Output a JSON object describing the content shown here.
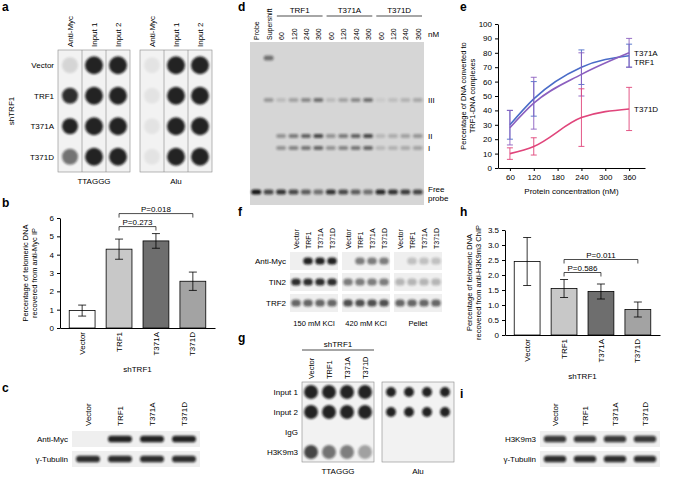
{
  "panel_labels": [
    "a",
    "b",
    "c",
    "d",
    "e",
    "f",
    "g",
    "h",
    "i"
  ],
  "chart_data": [
    {
      "type": "bar",
      "ylabel": "Percentage of telomeric DNA recovered from anti-Myc IP",
      "xlabel": "shTRF1",
      "categories": [
        "Vector",
        "TRF1",
        "T371A",
        "T371D"
      ],
      "values": [
        0.95,
        4.3,
        4.75,
        2.55
      ],
      "errors": [
        0.3,
        0.55,
        0.4,
        0.5
      ],
      "colors": [
        "#ffffff",
        "#c8c8c8",
        "#6e6e6e",
        "#a3a3a3"
      ],
      "ylim": [
        0,
        6
      ],
      "yticks": [
        0,
        1,
        2,
        3,
        4,
        5,
        6
      ],
      "annotations": [
        {
          "text": "P=0.273",
          "categories": [
            "TRF1",
            "T371A"
          ]
        },
        {
          "text": "P=0.018",
          "categories": [
            "TRF1",
            "T371D"
          ]
        }
      ]
    },
    {
      "type": "line",
      "ylabel": "Percentage of DNA converted to TRF1-DNA complexes",
      "xlabel": "Protein concentration (nM)",
      "x": [
        60,
        120,
        240,
        360
      ],
      "series": [
        {
          "name": "TRF1",
          "color": "#4a6cc8",
          "values": [
            30,
            48,
            70,
            78
          ],
          "errors": [
            10,
            12,
            12,
            8
          ]
        },
        {
          "name": "T371A",
          "color": "#8b5fbf",
          "values": [
            28,
            45,
            65,
            80
          ],
          "errors": [
            12,
            18,
            15,
            10
          ]
        },
        {
          "name": "T371D",
          "color": "#e0457b",
          "values": [
            10,
            15,
            35,
            41
          ],
          "errors": [
            4,
            6,
            20,
            15
          ]
        }
      ],
      "xlim": [
        30,
        400
      ],
      "xticks": [
        60,
        120,
        180,
        240,
        300,
        360
      ],
      "ylim": [
        0,
        100
      ],
      "yticks": [
        0,
        10,
        20,
        30,
        40,
        50,
        60,
        70,
        80,
        90,
        100
      ]
    },
    {
      "type": "bar",
      "ylabel": "Percentage of telomeric DNA recovered from anti-H3K9m3 ChIP",
      "xlabel": "shTRF1",
      "categories": [
        "Vector",
        "TRF1",
        "T371A",
        "T371D"
      ],
      "values": [
        2.45,
        1.55,
        1.45,
        0.85
      ],
      "errors": [
        0.8,
        0.3,
        0.25,
        0.25
      ],
      "colors": [
        "#ffffff",
        "#c8c8c8",
        "#6e6e6e",
        "#a3a3a3"
      ],
      "ylim": [
        0,
        3.5
      ],
      "yticks": [
        0,
        0.5,
        {
          "value": 1,
          "label": "1.0"
        },
        1.5,
        {
          "value": 2,
          "label": "2.0"
        },
        2.5,
        {
          "value": 3,
          "label": "3.0"
        },
        3.5
      ],
      "annotations": [
        {
          "text": "P=0.586",
          "categories": [
            "TRF1",
            "T371A"
          ]
        },
        {
          "text": "P=0.011",
          "categories": [
            "TRF1",
            "T371D"
          ]
        }
      ]
    }
  ],
  "panels": {
    "a": {
      "row_header": "shTRF1",
      "rows": [
        "Vector",
        "TRF1",
        "T371A",
        "T371D"
      ],
      "blots": [
        {
          "label": "TTAGGG",
          "columns": [
            "Anti-Myc",
            "Input 1",
            "Input 2"
          ]
        },
        {
          "label": "Alu",
          "columns": [
            "Anti-Myc",
            "Input 1",
            "Input 2"
          ]
        }
      ]
    },
    "c": {
      "lanes": [
        "Vector",
        "TRF1",
        "T371A",
        "T371D"
      ],
      "rows": [
        "Anti-Myc",
        "γ-Tubulin"
      ]
    },
    "d": {
      "lanes": [
        "Probe",
        "Supershift"
      ],
      "groups": [
        {
          "label": "TRF1",
          "lanes": [
            60,
            120,
            240,
            360
          ]
        },
        {
          "label": "T371A",
          "lanes": [
            60,
            120,
            240,
            360
          ]
        },
        {
          "label": "T371D",
          "lanes": [
            60,
            120,
            240,
            360
          ]
        }
      ],
      "unit": "nM",
      "bands": [
        "III",
        "II",
        "I",
        "Free probe"
      ]
    },
    "f": {
      "groups": [
        {
          "label": "150 mM KCl",
          "lanes": [
            "Vector",
            "TRF1",
            "T371A",
            "T371D"
          ]
        },
        {
          "label": "420 mM KCl",
          "lanes": [
            "Vector",
            "TRF1",
            "T371A",
            "T371D"
          ]
        },
        {
          "label": "Pellet",
          "lanes": [
            "Vector",
            "TRF1",
            "T371A",
            "T371D"
          ]
        }
      ],
      "rows": [
        "Anti-Myc",
        "TIN2",
        "TRF2"
      ]
    },
    "g": {
      "header": "shTRF1",
      "lanes": [
        "Vector",
        "TRF1",
        "T371A",
        "T371D"
      ],
      "rows": [
        "Input 1",
        "Input 2",
        "IgG",
        "H3K9m3"
      ],
      "blots": [
        "TTAGGG",
        "Alu"
      ]
    },
    "i": {
      "lanes": [
        "Vector",
        "TRF1",
        "T371A",
        "T371D"
      ],
      "rows": [
        "H3K9m3",
        "γ-Tubulin"
      ]
    }
  }
}
